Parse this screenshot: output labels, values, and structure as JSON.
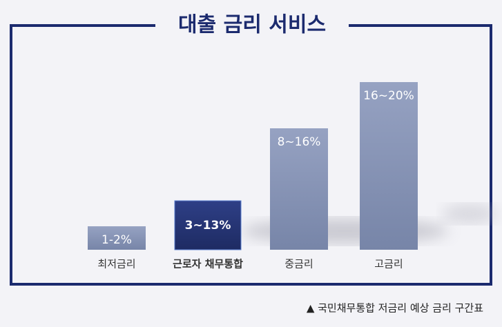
{
  "title": "대출 금리 서비스",
  "items": [
    {
      "label": "최저금리",
      "range": "1-2%"
    },
    {
      "label": "근로자 채무통합",
      "range": "3~13%"
    },
    {
      "label": "중금리",
      "range": "8~16%"
    },
    {
      "label": "고금리",
      "range": "16~20%"
    }
  ],
  "footnote": "▲ 국민채무통합 저금리 예상 금리 구간표"
}
